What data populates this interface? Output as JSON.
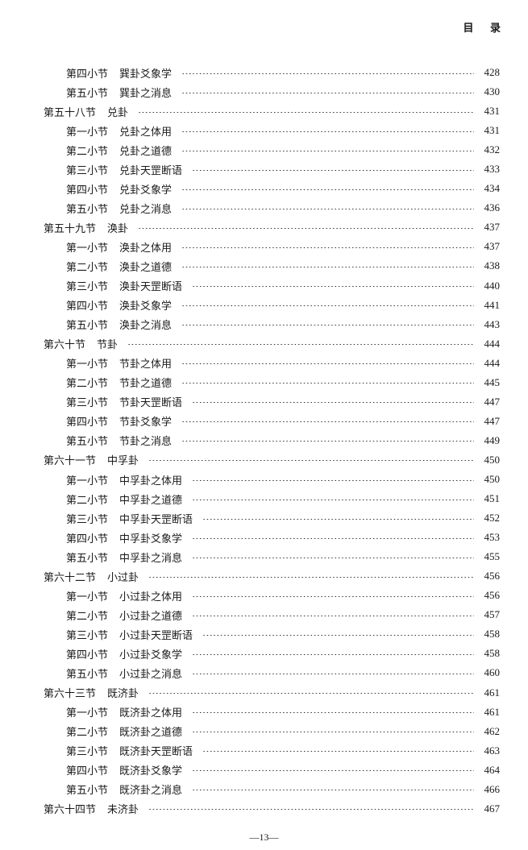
{
  "header": {
    "title": "目 录"
  },
  "entries": [
    {
      "level": "sub",
      "label": "第四小节",
      "title": "巽卦爻象学",
      "page": "428"
    },
    {
      "level": "sub",
      "label": "第五小节",
      "title": "巽卦之消息",
      "page": "430"
    },
    {
      "level": "section",
      "label": "第五十八节",
      "title": "兑卦",
      "page": "431"
    },
    {
      "level": "sub",
      "label": "第一小节",
      "title": "兑卦之体用",
      "page": "431"
    },
    {
      "level": "sub",
      "label": "第二小节",
      "title": "兑卦之道德",
      "page": "432"
    },
    {
      "level": "sub",
      "label": "第三小节",
      "title": "兑卦天罡断语",
      "page": "433"
    },
    {
      "level": "sub",
      "label": "第四小节",
      "title": "兑卦爻象学",
      "page": "434"
    },
    {
      "level": "sub",
      "label": "第五小节",
      "title": "兑卦之消息",
      "page": "436"
    },
    {
      "level": "section",
      "label": "第五十九节",
      "title": "涣卦",
      "page": "437"
    },
    {
      "level": "sub",
      "label": "第一小节",
      "title": "涣卦之体用",
      "page": "437"
    },
    {
      "level": "sub",
      "label": "第二小节",
      "title": "涣卦之道德",
      "page": "438"
    },
    {
      "level": "sub",
      "label": "第三小节",
      "title": "涣卦天罡断语",
      "page": "440"
    },
    {
      "level": "sub",
      "label": "第四小节",
      "title": "涣卦爻象学",
      "page": "441"
    },
    {
      "level": "sub",
      "label": "第五小节",
      "title": "涣卦之消息",
      "page": "443"
    },
    {
      "level": "section",
      "label": "第六十节",
      "title": "节卦",
      "page": "444"
    },
    {
      "level": "sub",
      "label": "第一小节",
      "title": "节卦之体用",
      "page": "444"
    },
    {
      "level": "sub",
      "label": "第二小节",
      "title": "节卦之道德",
      "page": "445"
    },
    {
      "level": "sub",
      "label": "第三小节",
      "title": "节卦天罡断语",
      "page": "447"
    },
    {
      "level": "sub",
      "label": "第四小节",
      "title": "节卦爻象学",
      "page": "447"
    },
    {
      "level": "sub",
      "label": "第五小节",
      "title": "节卦之消息",
      "page": "449"
    },
    {
      "level": "section",
      "label": "第六十一节",
      "title": "中孚卦",
      "page": "450"
    },
    {
      "level": "sub",
      "label": "第一小节",
      "title": "中孚卦之体用",
      "page": "450"
    },
    {
      "level": "sub",
      "label": "第二小节",
      "title": "中孚卦之道德",
      "page": "451"
    },
    {
      "level": "sub",
      "label": "第三小节",
      "title": "中孚卦天罡断语",
      "page": "452"
    },
    {
      "level": "sub",
      "label": "第四小节",
      "title": "中孚卦爻象学",
      "page": "453"
    },
    {
      "level": "sub",
      "label": "第五小节",
      "title": "中孚卦之消息",
      "page": "455"
    },
    {
      "level": "section",
      "label": "第六十二节",
      "title": "小过卦",
      "page": "456"
    },
    {
      "level": "sub",
      "label": "第一小节",
      "title": "小过卦之体用",
      "page": "456"
    },
    {
      "level": "sub",
      "label": "第二小节",
      "title": "小过卦之道德",
      "page": "457"
    },
    {
      "level": "sub",
      "label": "第三小节",
      "title": "小过卦天罡断语",
      "page": "458"
    },
    {
      "level": "sub",
      "label": "第四小节",
      "title": "小过卦爻象学",
      "page": "458"
    },
    {
      "level": "sub",
      "label": "第五小节",
      "title": "小过卦之消息",
      "page": "460"
    },
    {
      "level": "section",
      "label": "第六十三节",
      "title": "既济卦",
      "page": "461"
    },
    {
      "level": "sub",
      "label": "第一小节",
      "title": "既济卦之体用",
      "page": "461"
    },
    {
      "level": "sub",
      "label": "第二小节",
      "title": "既济卦之道德",
      "page": "462"
    },
    {
      "level": "sub",
      "label": "第三小节",
      "title": "既济卦天罡断语",
      "page": "463"
    },
    {
      "level": "sub",
      "label": "第四小节",
      "title": "既济卦爻象学",
      "page": "464"
    },
    {
      "level": "sub",
      "label": "第五小节",
      "title": "既济卦之消息",
      "page": "466"
    },
    {
      "level": "section",
      "label": "第六十四节",
      "title": "未济卦",
      "page": "467"
    }
  ],
  "footer": {
    "page_number": "—13—"
  }
}
